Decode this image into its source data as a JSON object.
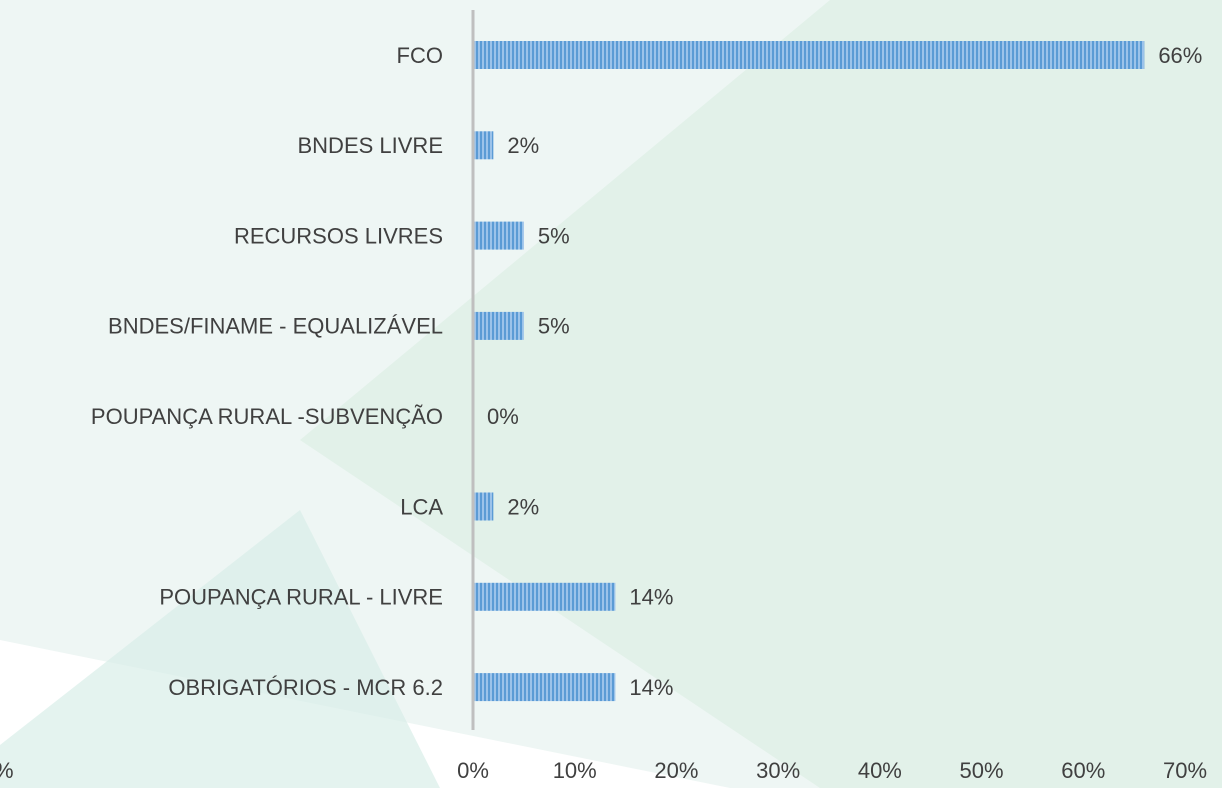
{
  "chart_data": {
    "type": "bar",
    "orientation": "horizontal",
    "categories": [
      "FCO",
      "BNDES LIVRE",
      "RECURSOS LIVRES",
      "BNDES/FINAME - EQUALIZÁVEL",
      "POUPANÇA RURAL -SUBVENÇÃO",
      "LCA",
      "POUPANÇA RURAL - LIVRE",
      "OBRIGATÓRIOS - MCR 6.2"
    ],
    "values": [
      66,
      2,
      5,
      5,
      0,
      2,
      14,
      14
    ],
    "value_labels": [
      "66%",
      "2%",
      "5%",
      "5%",
      "0%",
      "2%",
      "14%",
      "14%"
    ],
    "color": "#5b9bd5",
    "xlim": [
      0,
      70
    ],
    "xticks": [
      {
        "value": 0,
        "label": "0%"
      },
      {
        "value": 10,
        "label": "10%"
      },
      {
        "value": 20,
        "label": "20%"
      },
      {
        "value": 30,
        "label": "30%"
      },
      {
        "value": 40,
        "label": "40%"
      },
      {
        "value": 50,
        "label": "50%"
      },
      {
        "value": 60,
        "label": "60%"
      },
      {
        "value": 70,
        "label": "70%"
      }
    ],
    "annotation": "%"
  }
}
